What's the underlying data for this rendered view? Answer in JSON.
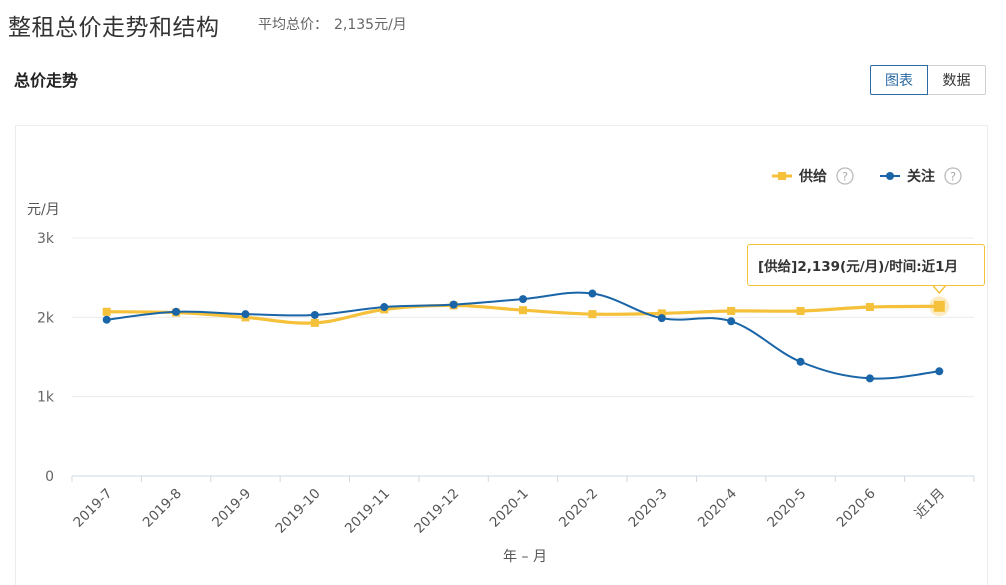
{
  "header": {
    "title": "整租总价走势和结构",
    "avg_label": "平均总价：",
    "avg_value": "2,135元/月"
  },
  "section": {
    "title": "总价走势"
  },
  "view_toggle": {
    "chart_label": "图表",
    "data_label": "数据",
    "active": "chart"
  },
  "colors": {
    "supply": "#f5c13a",
    "attention": "#1a65a8",
    "accent": "#2b6aa3"
  },
  "legend": {
    "items": [
      {
        "label": "供给",
        "help_icon": "question-circle-icon"
      },
      {
        "label": "关注",
        "help_icon": "question-circle-icon"
      }
    ]
  },
  "tooltip": {
    "text": "[供给]2,139(元/月)/时间:近1月"
  },
  "chart_data": {
    "type": "line",
    "ylabel": "元/月",
    "xlabel": "年 – 月",
    "yticks": [
      "0",
      "1k",
      "2k",
      "3k"
    ],
    "ylim": [
      0,
      3000
    ],
    "grid": true,
    "legend_position": "top-right",
    "categories": [
      "2019-7",
      "2019-8",
      "2019-9",
      "2019-10",
      "2019-11",
      "2019-12",
      "2020-1",
      "2020-2",
      "2020-3",
      "2020-4",
      "2020-5",
      "2020-6",
      "近1月"
    ],
    "series": [
      {
        "name": "供给",
        "marker": "square",
        "values": [
          2070,
          2060,
          2000,
          1930,
          2100,
          2150,
          2090,
          2040,
          2050,
          2080,
          2080,
          2130,
          2139
        ]
      },
      {
        "name": "关注",
        "marker": "circle",
        "values": [
          1970,
          2070,
          2040,
          2030,
          2130,
          2160,
          2230,
          2300,
          1990,
          1950,
          1440,
          1230,
          1320
        ]
      }
    ],
    "highlight": {
      "series": "供给",
      "category": "近1月"
    }
  }
}
